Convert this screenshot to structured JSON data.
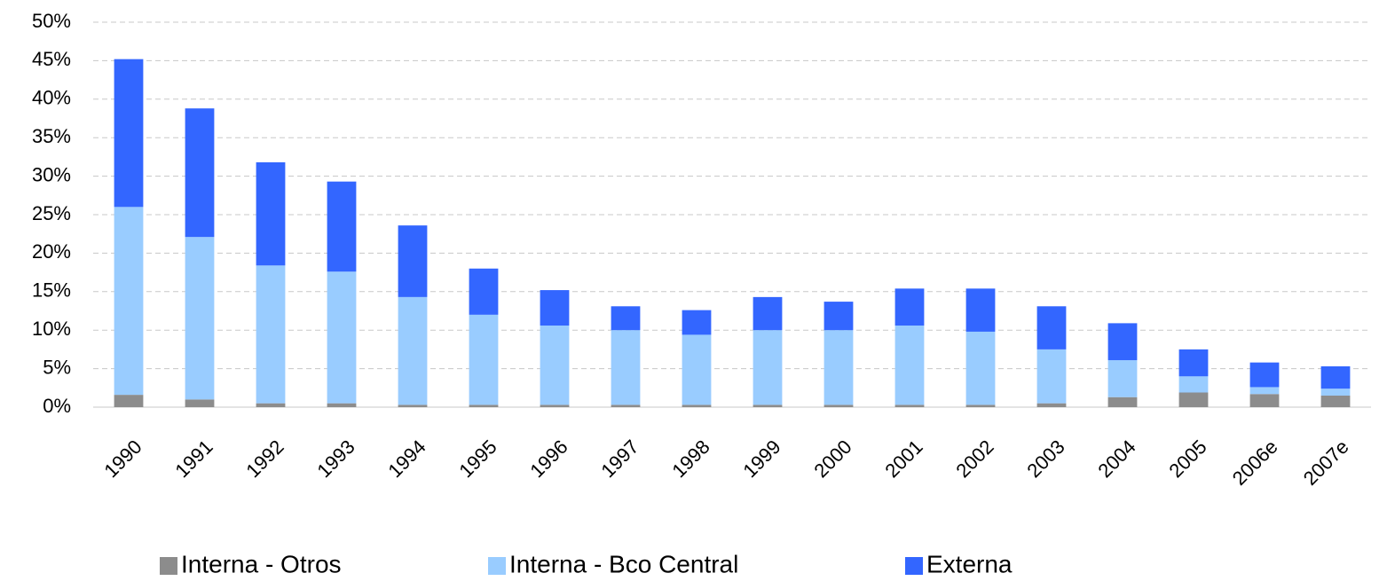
{
  "chart_data": {
    "type": "stacked_bar",
    "categories": [
      "1990",
      "1991",
      "1992",
      "1993",
      "1994",
      "1995",
      "1996",
      "1997",
      "1998",
      "1999",
      "2000",
      "2001",
      "2002",
      "2003",
      "2004",
      "2005",
      "2006e",
      "2007e"
    ],
    "series": [
      {
        "name": "Interna - Otros",
        "color": "#8c8c8c",
        "values": [
          1.6,
          1.0,
          0.5,
          0.5,
          0.3,
          0.3,
          0.3,
          0.3,
          0.3,
          0.3,
          0.3,
          0.3,
          0.3,
          0.5,
          1.3,
          1.9,
          1.7,
          1.5
        ]
      },
      {
        "name": "Interna - Bco Central",
        "color": "#99ccff",
        "values": [
          24.4,
          21.1,
          17.9,
          17.1,
          14.0,
          11.7,
          10.3,
          9.7,
          9.1,
          9.7,
          9.7,
          10.3,
          9.5,
          7.0,
          4.8,
          2.1,
          0.9,
          0.9
        ]
      },
      {
        "name": "Externa",
        "color": "#3366ff",
        "values": [
          19.2,
          16.7,
          13.4,
          11.7,
          9.3,
          6.0,
          4.6,
          3.1,
          3.2,
          4.3,
          3.7,
          4.8,
          5.6,
          5.6,
          4.8,
          3.5,
          3.2,
          2.9
        ]
      }
    ],
    "ylim": [
      0,
      50
    ],
    "yticks": [
      {
        "value": 0,
        "label": "0%"
      },
      {
        "value": 5,
        "label": "5%"
      },
      {
        "value": 10,
        "label": "10%"
      },
      {
        "value": 15,
        "label": "15%"
      },
      {
        "value": 20,
        "label": "20%"
      },
      {
        "value": 25,
        "label": "25%"
      },
      {
        "value": 30,
        "label": "30%"
      },
      {
        "value": 35,
        "label": "35%"
      },
      {
        "value": 40,
        "label": "40%"
      },
      {
        "value": 45,
        "label": "45%"
      },
      {
        "value": 50,
        "label": "50%"
      }
    ],
    "grid": true,
    "legend": "bottom"
  }
}
